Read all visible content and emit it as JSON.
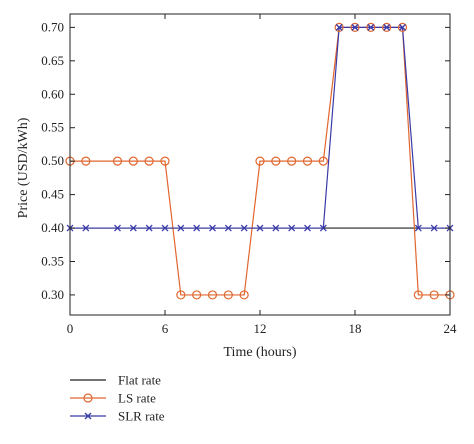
{
  "chart_data": {
    "type": "line",
    "xlabel": "Time (hours)",
    "ylabel": "Price (USD/kWh)",
    "xlim": [
      0,
      24
    ],
    "ylim": [
      0.27,
      0.72
    ],
    "xticks": [
      "0",
      "6",
      "12",
      "18",
      "24"
    ],
    "yticks": [
      "0.30",
      "0.35",
      "0.40",
      "0.45",
      "0.50",
      "0.55",
      "0.60",
      "0.65",
      "0.70"
    ],
    "grid": false,
    "legend_position": "bottom-left, below plot",
    "series": [
      {
        "name": "Flat rate",
        "color": "#222222",
        "marker": "none",
        "x": [
          0,
          24
        ],
        "y": [
          0.4,
          0.4
        ]
      },
      {
        "name": "LS rate",
        "color": "#e0662e",
        "marker": "circle",
        "x": [
          0,
          1,
          2,
          3,
          4,
          5,
          6,
          7,
          8,
          9,
          10,
          11,
          12,
          13,
          14,
          15,
          16,
          17,
          18,
          19,
          20,
          21,
          22,
          23,
          24
        ],
        "y": [
          0.5,
          0.5,
          0.5,
          0.5,
          0.5,
          0.5,
          0.5,
          0.3,
          0.3,
          0.3,
          0.3,
          0.3,
          0.5,
          0.5,
          0.5,
          0.5,
          0.5,
          0.7,
          0.7,
          0.7,
          0.7,
          0.7,
          0.3,
          0.3,
          0.3
        ],
        "marker_x": [
          0,
          1,
          3,
          4,
          5,
          6,
          7,
          8,
          9,
          10,
          11,
          12,
          13,
          14,
          15,
          16,
          17,
          18,
          19,
          20,
          21,
          22,
          23,
          24
        ]
      },
      {
        "name": "SLR rate",
        "color": "#3a3aa8",
        "marker": "x",
        "x": [
          0,
          1,
          2,
          3,
          4,
          5,
          6,
          7,
          8,
          9,
          10,
          11,
          12,
          13,
          14,
          15,
          16,
          17,
          18,
          19,
          20,
          21,
          22,
          23,
          24
        ],
        "y": [
          0.4,
          0.4,
          0.4,
          0.4,
          0.4,
          0.4,
          0.4,
          0.4,
          0.4,
          0.4,
          0.4,
          0.4,
          0.4,
          0.4,
          0.4,
          0.4,
          0.4,
          0.7,
          0.7,
          0.7,
          0.7,
          0.7,
          0.4,
          0.4,
          0.4
        ],
        "marker_x": [
          0,
          1,
          3,
          4,
          5,
          6,
          7,
          8,
          9,
          10,
          11,
          12,
          13,
          14,
          15,
          16,
          17,
          18,
          19,
          20,
          21,
          22,
          23,
          24
        ]
      }
    ]
  }
}
